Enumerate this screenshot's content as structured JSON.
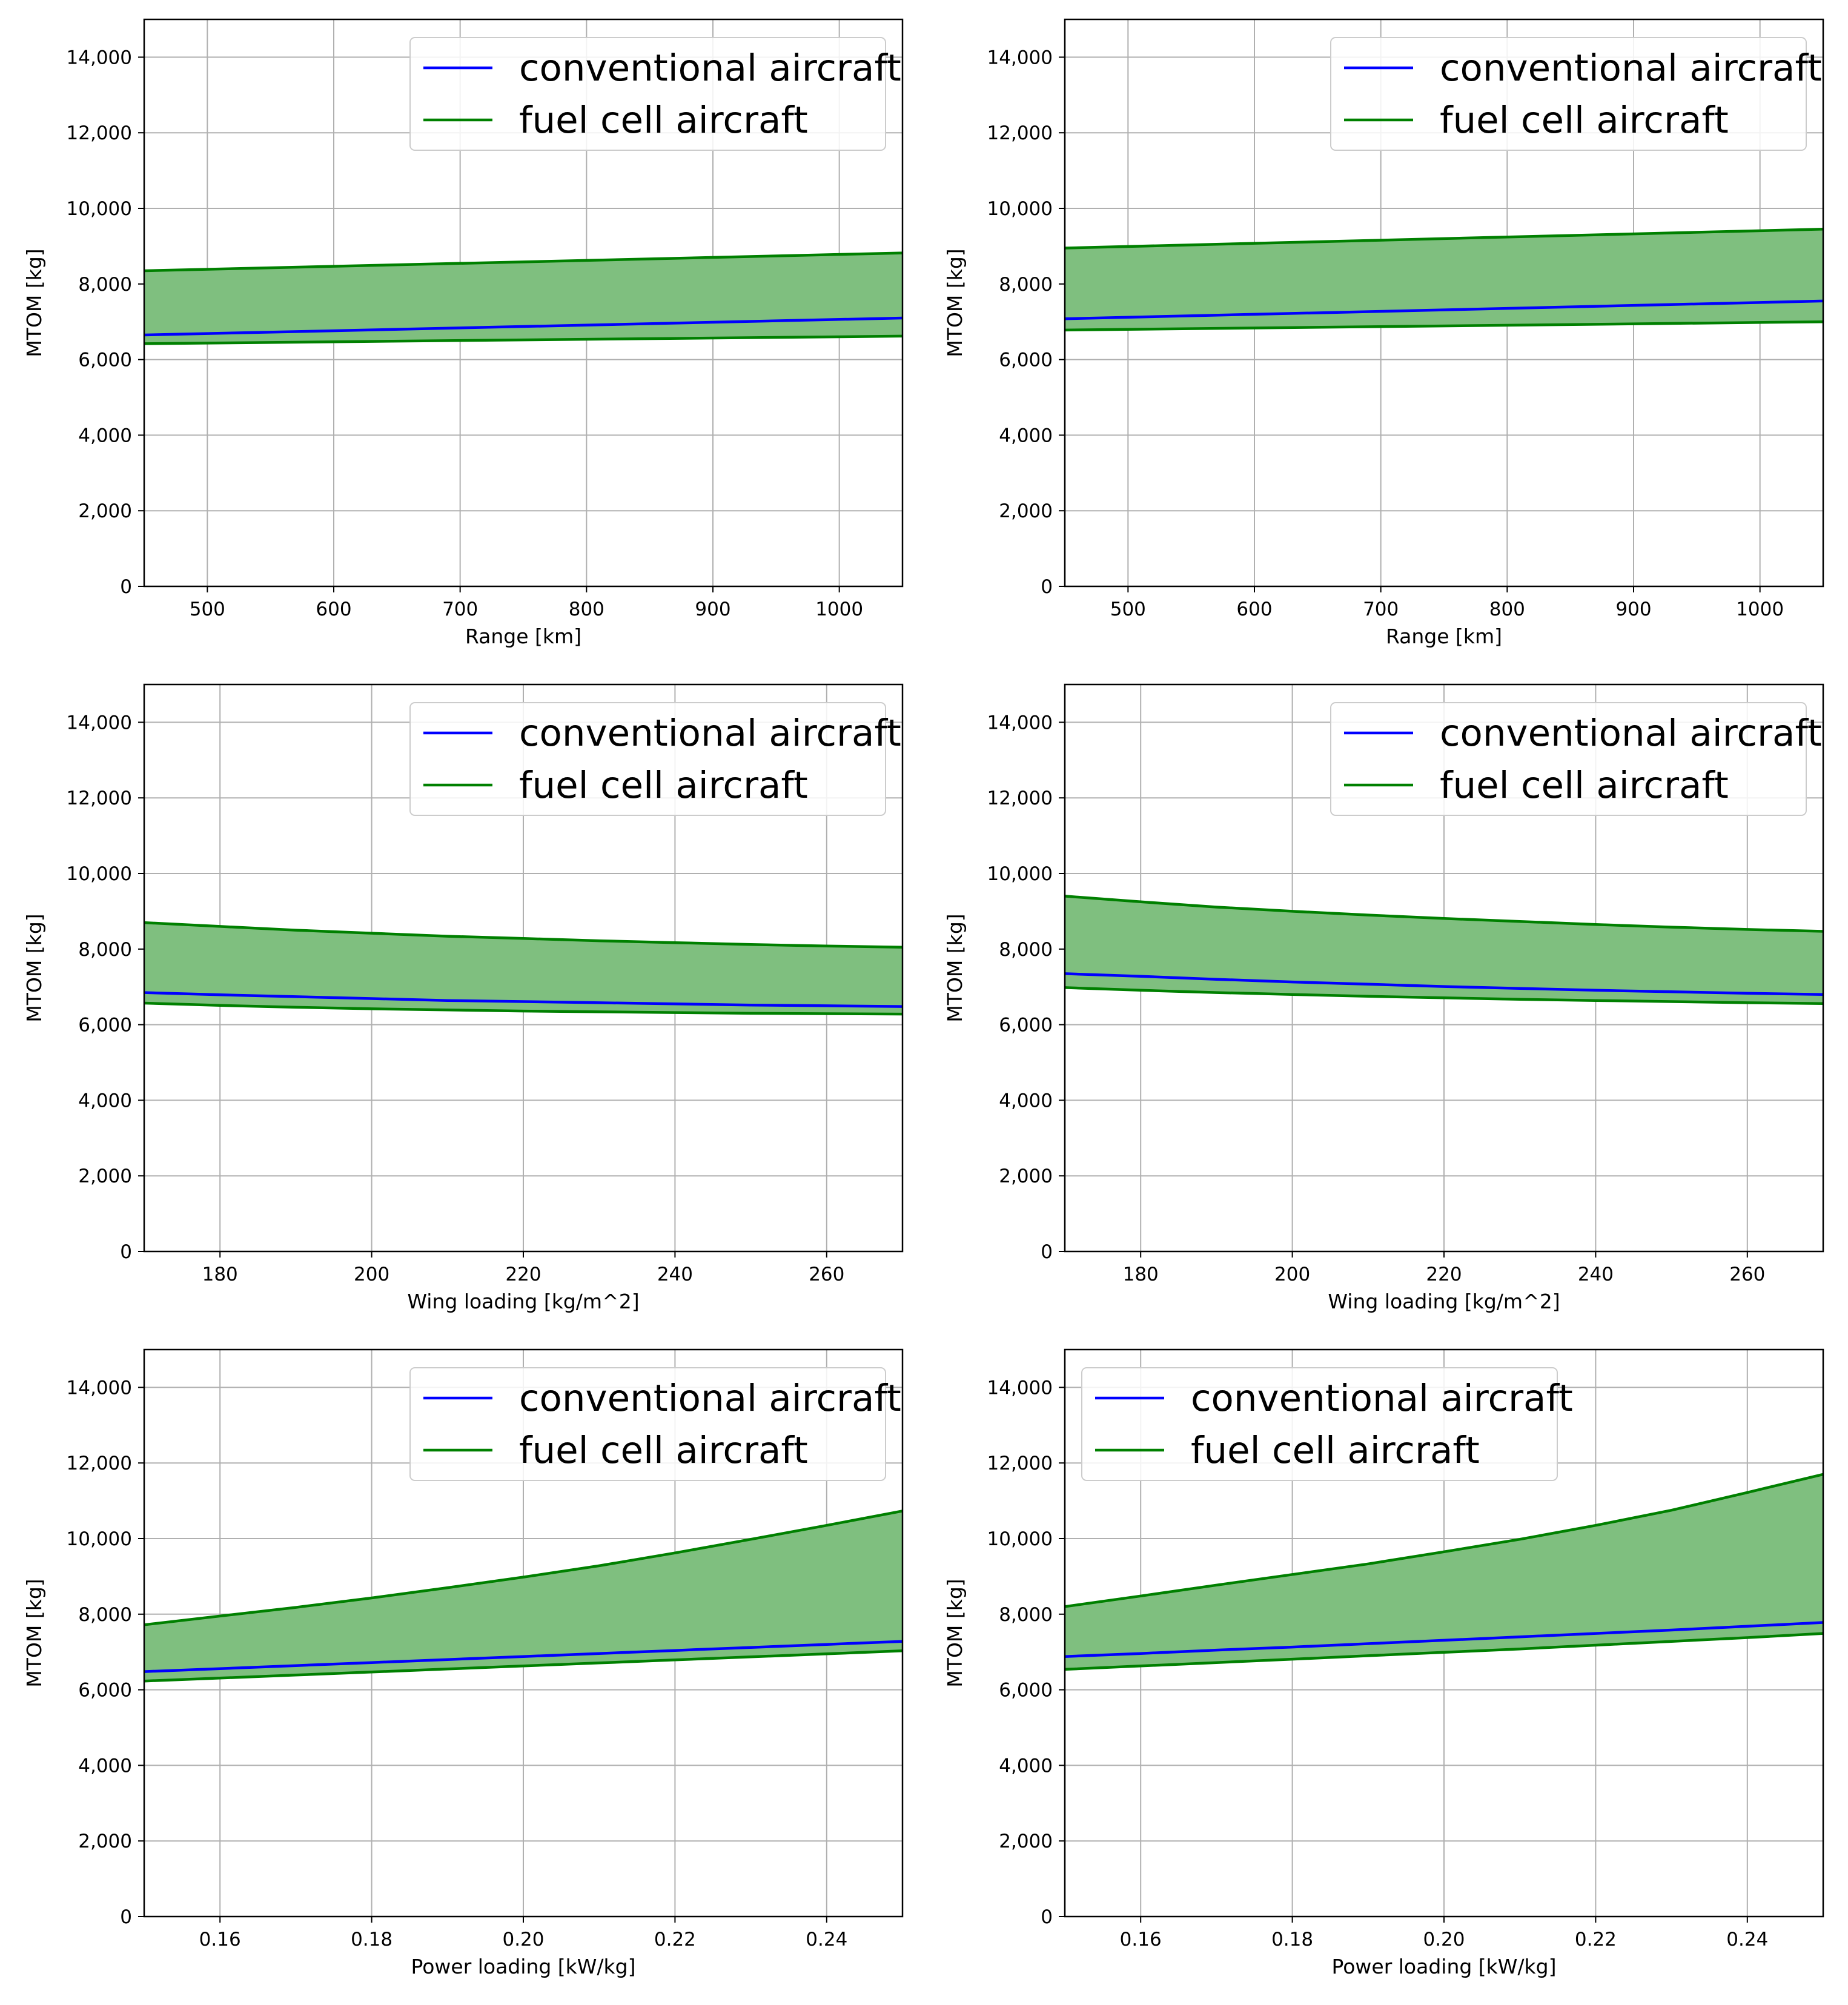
{
  "colors": {
    "conventional": "#0000ff",
    "fuel_cell": "#008000",
    "fuel_cell_fill": "#7fbf7f",
    "grid": "#b0b0b0",
    "axes": "#000000",
    "background": "#ffffff"
  },
  "chart_data": [
    {
      "type": "line",
      "panel": "top-left",
      "xlabel": "Range [km]",
      "ylabel": "MTOM [kg]",
      "xlim": [
        450,
        1050
      ],
      "ylim": [
        0,
        15000
      ],
      "xticks": [
        500,
        600,
        700,
        800,
        900,
        1000
      ],
      "xtick_labels": [
        "500",
        "600",
        "700",
        "800",
        "900",
        "1000"
      ],
      "yticks": [
        0,
        2000,
        4000,
        6000,
        8000,
        10000,
        12000,
        14000
      ],
      "ytick_labels": [
        "0",
        "2,000",
        "4,000",
        "6,000",
        "8,000",
        "10,000",
        "12,000",
        "14,000"
      ],
      "grid": true,
      "legend": {
        "position": "top-right",
        "entries": [
          "conventional aircraft",
          "fuel cell aircraft"
        ]
      },
      "x": [
        450,
        1050
      ],
      "series": [
        {
          "name": "conventional aircraft",
          "values": [
            6650,
            7100
          ]
        },
        {
          "name": "fuel cell aircraft (upper)",
          "values": [
            8350,
            8820
          ]
        },
        {
          "name": "fuel cell aircraft (lower)",
          "values": [
            6420,
            6620
          ]
        }
      ]
    },
    {
      "type": "line",
      "panel": "top-right",
      "xlabel": "Range [km]",
      "ylabel": "MTOM [kg]",
      "xlim": [
        450,
        1050
      ],
      "ylim": [
        0,
        15000
      ],
      "xticks": [
        500,
        600,
        700,
        800,
        900,
        1000
      ],
      "xtick_labels": [
        "500",
        "600",
        "700",
        "800",
        "900",
        "1000"
      ],
      "yticks": [
        0,
        2000,
        4000,
        6000,
        8000,
        10000,
        12000,
        14000
      ],
      "ytick_labels": [
        "0",
        "2,000",
        "4,000",
        "6,000",
        "8,000",
        "10,000",
        "12,000",
        "14,000"
      ],
      "grid": true,
      "legend": {
        "position": "top-right",
        "entries": [
          "conventional aircraft",
          "fuel cell aircraft"
        ]
      },
      "x": [
        450,
        1050
      ],
      "series": [
        {
          "name": "conventional aircraft",
          "values": [
            7080,
            7550
          ]
        },
        {
          "name": "fuel cell aircraft (upper)",
          "values": [
            8950,
            9450
          ]
        },
        {
          "name": "fuel cell aircraft (lower)",
          "values": [
            6780,
            7000
          ]
        }
      ]
    },
    {
      "type": "line",
      "panel": "middle-left",
      "xlabel": "Wing loading [kg/m^2]",
      "ylabel": "MTOM [kg]",
      "xlim": [
        170,
        270
      ],
      "ylim": [
        0,
        15000
      ],
      "xticks": [
        180,
        200,
        220,
        240,
        260
      ],
      "xtick_labels": [
        "180",
        "200",
        "220",
        "240",
        "260"
      ],
      "yticks": [
        0,
        2000,
        4000,
        6000,
        8000,
        10000,
        12000,
        14000
      ],
      "ytick_labels": [
        "0",
        "2,000",
        "4,000",
        "6,000",
        "8,000",
        "10,000",
        "12,000",
        "14,000"
      ],
      "grid": true,
      "legend": {
        "position": "top-right",
        "entries": [
          "conventional aircraft",
          "fuel cell aircraft"
        ]
      },
      "x": [
        170,
        180,
        190,
        200,
        210,
        220,
        230,
        240,
        250,
        260,
        270
      ],
      "series": [
        {
          "name": "conventional aircraft",
          "values": [
            6850,
            6790,
            6740,
            6690,
            6640,
            6610,
            6580,
            6550,
            6520,
            6500,
            6480
          ]
        },
        {
          "name": "fuel cell aircraft (upper)",
          "values": [
            8700,
            8600,
            8500,
            8420,
            8340,
            8280,
            8220,
            8170,
            8120,
            8080,
            8050
          ]
        },
        {
          "name": "fuel cell aircraft (lower)",
          "values": [
            6570,
            6510,
            6460,
            6420,
            6390,
            6360,
            6340,
            6320,
            6300,
            6290,
            6280
          ]
        }
      ]
    },
    {
      "type": "line",
      "panel": "middle-right",
      "xlabel": "Wing loading [kg/m^2]",
      "ylabel": "MTOM [kg]",
      "xlim": [
        170,
        270
      ],
      "ylim": [
        0,
        15000
      ],
      "xticks": [
        180,
        200,
        220,
        240,
        260
      ],
      "xtick_labels": [
        "180",
        "200",
        "220",
        "240",
        "260"
      ],
      "yticks": [
        0,
        2000,
        4000,
        6000,
        8000,
        10000,
        12000,
        14000
      ],
      "ytick_labels": [
        "0",
        "2,000",
        "4,000",
        "6,000",
        "8,000",
        "10,000",
        "12,000",
        "14,000"
      ],
      "grid": true,
      "legend": {
        "position": "top-right",
        "entries": [
          "conventional aircraft",
          "fuel cell aircraft"
        ]
      },
      "x": [
        170,
        180,
        190,
        200,
        210,
        220,
        230,
        240,
        250,
        260,
        270
      ],
      "series": [
        {
          "name": "conventional aircraft",
          "values": [
            7350,
            7280,
            7200,
            7130,
            7070,
            7010,
            6960,
            6910,
            6870,
            6830,
            6800
          ]
        },
        {
          "name": "fuel cell aircraft (upper)",
          "values": [
            9400,
            9250,
            9110,
            9000,
            8900,
            8810,
            8730,
            8650,
            8580,
            8520,
            8470
          ]
        },
        {
          "name": "fuel cell aircraft (lower)",
          "values": [
            6980,
            6910,
            6850,
            6800,
            6750,
            6710,
            6670,
            6640,
            6610,
            6580,
            6560
          ]
        }
      ]
    },
    {
      "type": "line",
      "panel": "bottom-left",
      "xlabel": "Power loading [kW/kg]",
      "ylabel": "MTOM [kg]",
      "xlim": [
        0.15,
        0.25
      ],
      "ylim": [
        0,
        15000
      ],
      "xticks": [
        0.16,
        0.18,
        0.2,
        0.22,
        0.24
      ],
      "xtick_labels": [
        "0.16",
        "0.18",
        "0.20",
        "0.22",
        "0.24"
      ],
      "yticks": [
        0,
        2000,
        4000,
        6000,
        8000,
        10000,
        12000,
        14000
      ],
      "ytick_labels": [
        "0",
        "2,000",
        "4,000",
        "6,000",
        "8,000",
        "10,000",
        "12,000",
        "14,000"
      ],
      "grid": true,
      "legend": {
        "position": "top-right",
        "entries": [
          "conventional aircraft",
          "fuel cell aircraft"
        ]
      },
      "x": [
        0.15,
        0.16,
        0.17,
        0.18,
        0.19,
        0.2,
        0.21,
        0.22,
        0.23,
        0.24,
        0.25
      ],
      "series": [
        {
          "name": "conventional aircraft",
          "values": [
            6480,
            6560,
            6640,
            6720,
            6800,
            6880,
            6960,
            7040,
            7120,
            7200,
            7280
          ]
        },
        {
          "name": "fuel cell aircraft (upper)",
          "values": [
            7720,
            7950,
            8180,
            8430,
            8700,
            8980,
            9280,
            9620,
            9980,
            10350,
            10730
          ]
        },
        {
          "name": "fuel cell aircraft (lower)",
          "values": [
            6230,
            6310,
            6390,
            6470,
            6550,
            6630,
            6710,
            6790,
            6870,
            6950,
            7030
          ]
        }
      ]
    },
    {
      "type": "line",
      "panel": "bottom-right",
      "xlabel": "Power loading [kW/kg]",
      "ylabel": "MTOM [kg]",
      "xlim": [
        0.15,
        0.25
      ],
      "ylim": [
        0,
        15000
      ],
      "xticks": [
        0.16,
        0.18,
        0.2,
        0.22,
        0.24
      ],
      "xtick_labels": [
        "0.16",
        "0.18",
        "0.20",
        "0.22",
        "0.24"
      ],
      "yticks": [
        0,
        2000,
        4000,
        6000,
        8000,
        10000,
        12000,
        14000
      ],
      "ytick_labels": [
        "0",
        "2,000",
        "4,000",
        "6,000",
        "8,000",
        "10,000",
        "12,000",
        "14,000"
      ],
      "grid": true,
      "legend": {
        "position": "top-left",
        "entries": [
          "conventional aircraft",
          "fuel cell aircraft"
        ]
      },
      "x": [
        0.15,
        0.16,
        0.17,
        0.18,
        0.19,
        0.2,
        0.21,
        0.22,
        0.23,
        0.24,
        0.25
      ],
      "series": [
        {
          "name": "conventional aircraft",
          "values": [
            6880,
            6960,
            7050,
            7130,
            7220,
            7310,
            7400,
            7490,
            7580,
            7680,
            7780
          ]
        },
        {
          "name": "fuel cell aircraft (upper)",
          "values": [
            8200,
            8480,
            8770,
            9050,
            9330,
            9650,
            9980,
            10350,
            10750,
            11220,
            11700
          ]
        },
        {
          "name": "fuel cell aircraft (lower)",
          "values": [
            6540,
            6630,
            6720,
            6810,
            6900,
            6990,
            7080,
            7180,
            7280,
            7380,
            7490
          ]
        }
      ]
    }
  ]
}
